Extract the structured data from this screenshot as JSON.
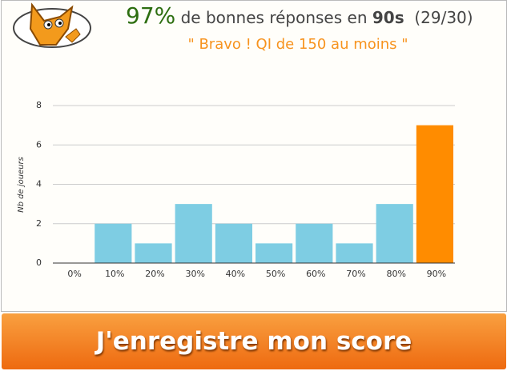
{
  "header": {
    "score": "97%",
    "text": "de bonnes réponses en",
    "time": "90s",
    "count": "(29/30)",
    "comment": "\" Bravo ! QI de 150 au moins \""
  },
  "chart_data": {
    "type": "bar",
    "ylabel": "Nb de joueurs",
    "categories": [
      "0%",
      "10%",
      "20%",
      "30%",
      "40%",
      "50%",
      "60%",
      "70%",
      "80%",
      "90%"
    ],
    "values": [
      0,
      2,
      1,
      3,
      2,
      1,
      2,
      1,
      3,
      7
    ],
    "colors": [
      "#7ecde3",
      "#7ecde3",
      "#7ecde3",
      "#7ecde3",
      "#7ecde3",
      "#7ecde3",
      "#7ecde3",
      "#7ecde3",
      "#7ecde3",
      "#ff8c00"
    ],
    "ylim": [
      0,
      8
    ],
    "yticks": [
      0,
      2,
      4,
      6,
      8
    ],
    "grid": true
  },
  "button": "J'enregistre mon score"
}
